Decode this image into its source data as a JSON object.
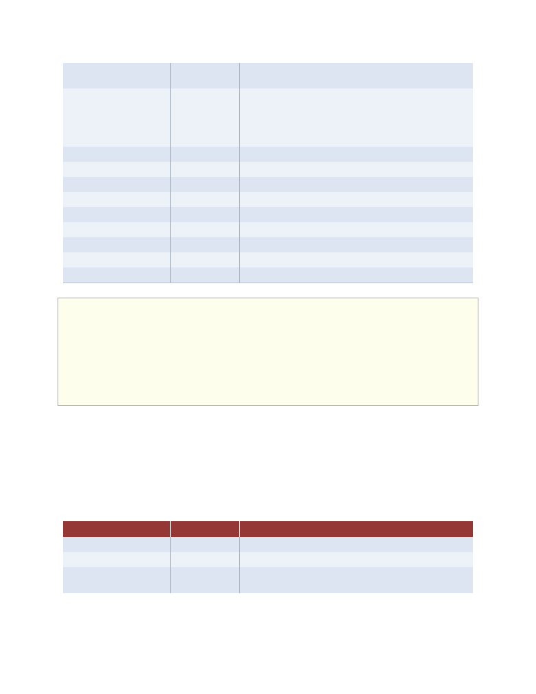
{
  "colors": {
    "row_dark": "#dce5f1",
    "row_light": "#edf2f9",
    "header": "#953735",
    "note_background": "#fdfeeb",
    "rule": "#a9b3bf"
  },
  "top_table": {
    "columns": [
      "",
      "",
      ""
    ],
    "rows": [
      [
        "",
        "",
        ""
      ],
      [
        "",
        "",
        ""
      ],
      [
        "",
        "",
        ""
      ],
      [
        "",
        "",
        ""
      ],
      [
        "",
        "",
        ""
      ],
      [
        "",
        "",
        ""
      ],
      [
        "",
        "",
        ""
      ],
      [
        "",
        "",
        ""
      ],
      [
        "",
        "",
        ""
      ],
      [
        "",
        "",
        ""
      ],
      [
        "",
        "",
        ""
      ]
    ]
  },
  "note_box": {
    "text": ""
  },
  "bottom_table": {
    "header": [
      "",
      "",
      ""
    ],
    "rows": [
      [
        "",
        "",
        ""
      ],
      [
        "",
        "",
        ""
      ],
      [
        "",
        "",
        ""
      ]
    ]
  }
}
